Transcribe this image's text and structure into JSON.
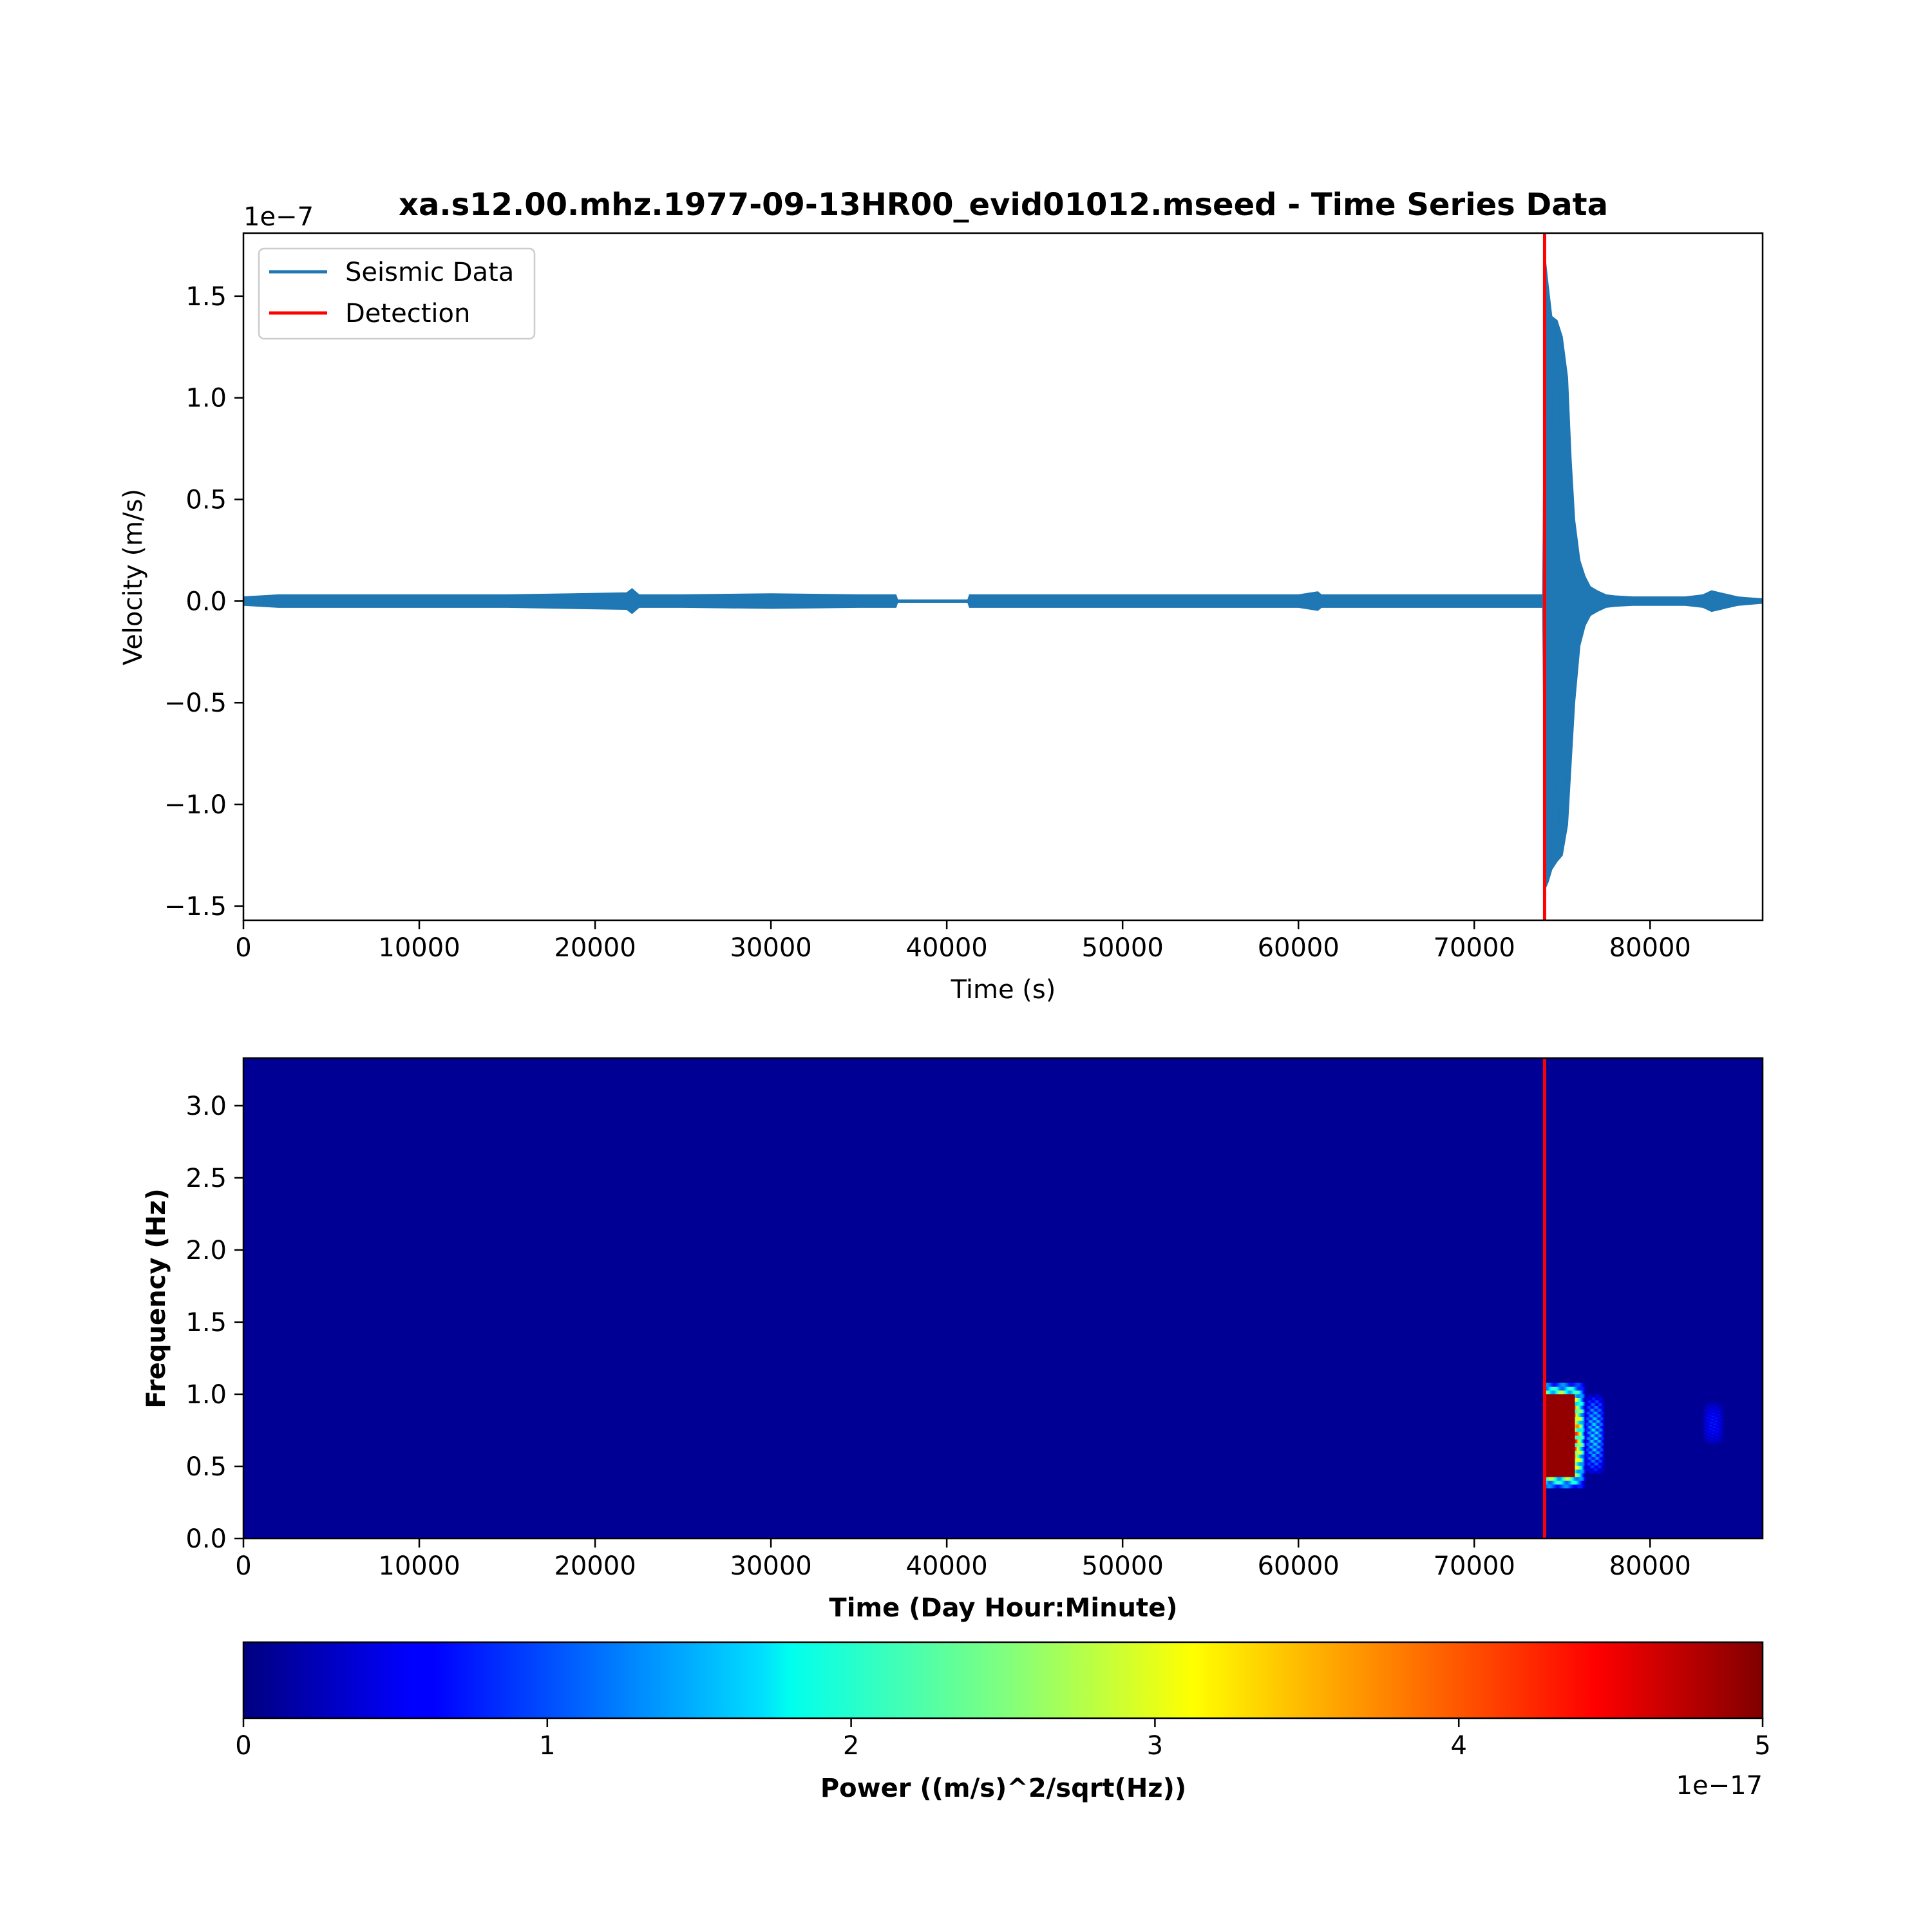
{
  "chart_data": [
    {
      "type": "line",
      "title": "xa.s12.00.mhz.1977-09-13HR00_evid01012.mseed - Time Series Data",
      "xlabel": "Time (s)",
      "ylabel": "Velocity (m/s)",
      "y_offset_label": "1e−7",
      "xlim": [
        0,
        86400
      ],
      "ylim": [
        -1.57,
        1.81
      ],
      "x_ticks": [
        0,
        10000,
        20000,
        30000,
        40000,
        50000,
        60000,
        70000,
        80000
      ],
      "y_ticks": [
        -1.5,
        -1.0,
        -0.5,
        0.0,
        0.5,
        1.0,
        1.5
      ],
      "legend_position": "top-left",
      "grid": false,
      "series": [
        {
          "name": "Seismic Data",
          "color": "#1f77b4",
          "envelope": {
            "x": [
              0,
              2000,
              5000,
              10000,
              15000,
              21800,
              22100,
              22500,
              25000,
              30000,
              35000,
              37100,
              37200,
              41200,
              41300,
              45000,
              50000,
              55000,
              60000,
              61100,
              61300,
              65000,
              70000,
              73900,
              74050,
              74200,
              74400,
              74700,
              75000,
              75300,
              75500,
              75700,
              76000,
              76300,
              76600,
              77000,
              77500,
              78000,
              79000,
              80000,
              82000,
              83000,
              83500,
              84000,
              85000,
              86400
            ],
            "upper": [
              0.02,
              0.03,
              0.03,
              0.03,
              0.03,
              0.04,
              0.06,
              0.03,
              0.03,
              0.035,
              0.03,
              0.03,
              0.005,
              0.005,
              0.03,
              0.03,
              0.03,
              0.03,
              0.03,
              0.045,
              0.03,
              0.03,
              0.03,
              0.03,
              1.67,
              1.55,
              1.4,
              1.38,
              1.3,
              1.1,
              0.7,
              0.4,
              0.2,
              0.12,
              0.07,
              0.05,
              0.03,
              0.025,
              0.02,
              0.02,
              0.02,
              0.03,
              0.05,
              0.04,
              0.02,
              0.01
            ],
            "lower": [
              -0.02,
              -0.03,
              -0.03,
              -0.03,
              -0.03,
              -0.04,
              -0.06,
              -0.03,
              -0.03,
              -0.035,
              -0.03,
              -0.03,
              -0.005,
              -0.005,
              -0.03,
              -0.03,
              -0.03,
              -0.03,
              -0.03,
              -0.045,
              -0.03,
              -0.03,
              -0.03,
              -0.03,
              -1.41,
              -1.38,
              -1.32,
              -1.28,
              -1.25,
              -1.1,
              -0.8,
              -0.5,
              -0.22,
              -0.12,
              -0.07,
              -0.05,
              -0.03,
              -0.025,
              -0.02,
              -0.02,
              -0.02,
              -0.03,
              -0.05,
              -0.04,
              -0.02,
              -0.01
            ]
          }
        },
        {
          "name": "Detection",
          "color": "#ff0000",
          "x": 74000
        }
      ]
    },
    {
      "type": "heatmap",
      "title": "",
      "xlabel": "Time (Day Hour:Minute)",
      "ylabel": "Frequency (Hz)",
      "xlim": [
        0,
        86400
      ],
      "ylim": [
        0,
        3.33
      ],
      "x_ticks": [
        0,
        10000,
        20000,
        30000,
        40000,
        50000,
        60000,
        70000,
        80000
      ],
      "y_ticks": [
        0.0,
        0.5,
        1.0,
        1.5,
        2.0,
        2.5,
        3.0
      ],
      "background_value": 0.1,
      "energy_blobs": [
        {
          "t0": 74000,
          "t1": 76300,
          "f0": 0.35,
          "f1": 1.08,
          "peak": 5.0
        },
        {
          "t0": 76300,
          "t1": 77400,
          "f0": 0.45,
          "f1": 1.0,
          "peak": 1.8
        },
        {
          "t0": 83000,
          "t1": 84200,
          "f0": 0.65,
          "f1": 0.95,
          "peak": 0.8
        }
      ],
      "detection": {
        "x": 74000,
        "color": "#ff0000"
      },
      "colorbar": {
        "label": "Power ((m/s)^2/sqrt(Hz))",
        "offset_label": "1e−17",
        "colormap": "jet",
        "range": [
          0,
          5
        ],
        "ticks": [
          0,
          1,
          2,
          3,
          4,
          5
        ]
      }
    }
  ]
}
